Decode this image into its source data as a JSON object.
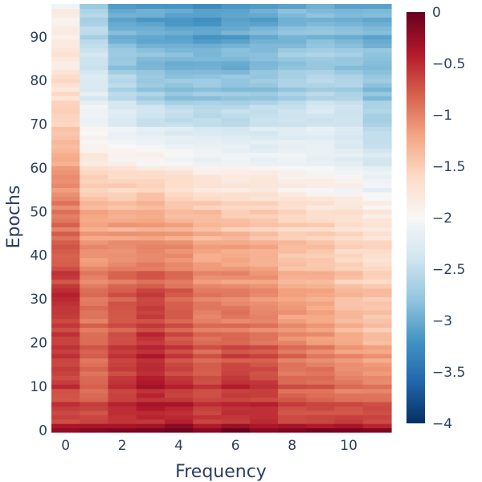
{
  "chart_data": {
    "type": "heatmap",
    "xlabel": "Frequency",
    "ylabel": "Epochs",
    "x": [
      0,
      1,
      2,
      3,
      4,
      5,
      6,
      7,
      8,
      9,
      10,
      11
    ],
    "y_range": [
      0,
      98
    ],
    "x_ticks": [
      "0",
      "2",
      "4",
      "6",
      "8",
      "10"
    ],
    "y_ticks": [
      "0",
      "10",
      "20",
      "30",
      "40",
      "50",
      "60",
      "70",
      "80",
      "90"
    ],
    "colorbar": {
      "min": -4,
      "max": 0,
      "ticks": [
        "0",
        "−0.5",
        "−1",
        "−1.5",
        "−2",
        "−2.5",
        "−3",
        "−3.5",
        "−4"
      ],
      "colorscale": "RdBu",
      "colors": [
        "#053061",
        "#2166ac",
        "#4393c3",
        "#92c5de",
        "#d1e5f0",
        "#f7f7f7",
        "#fddbc7",
        "#f4a582",
        "#d6604d",
        "#b2182b",
        "#67001f"
      ]
    },
    "approx_values_by_epoch": [
      {
        "epoch": 0,
        "values": [
          -0.25,
          -0.2,
          -0.15,
          -0.15,
          -0.1,
          -0.2,
          -0.15,
          -0.2,
          -0.2,
          -0.2,
          -0.2,
          -0.25
        ]
      },
      {
        "epoch": 2,
        "values": [
          -0.6,
          -0.6,
          -0.5,
          -0.5,
          -0.4,
          -0.55,
          -0.5,
          -0.5,
          -0.6,
          -0.6,
          -0.6,
          -0.6
        ]
      },
      {
        "epoch": 10,
        "values": [
          -0.65,
          -0.85,
          -0.6,
          -0.4,
          -0.55,
          -0.7,
          -0.55,
          -0.6,
          -0.8,
          -0.85,
          -0.95,
          -1.0
        ]
      },
      {
        "epoch": 20,
        "values": [
          -0.6,
          -0.85,
          -0.65,
          -0.5,
          -0.7,
          -0.85,
          -0.8,
          -0.85,
          -1.0,
          -1.05,
          -1.2,
          -1.3
        ]
      },
      {
        "epoch": 30,
        "values": [
          -0.55,
          -0.95,
          -0.8,
          -0.7,
          -0.85,
          -1.05,
          -1.05,
          -1.1,
          -1.25,
          -1.3,
          -1.45,
          -1.5
        ]
      },
      {
        "epoch": 40,
        "values": [
          -0.75,
          -1.05,
          -1.0,
          -0.95,
          -1.0,
          -1.15,
          -1.15,
          -1.2,
          -1.35,
          -1.4,
          -1.5,
          -1.6
        ]
      },
      {
        "epoch": 50,
        "values": [
          -0.95,
          -1.3,
          -1.35,
          -1.3,
          -1.4,
          -1.45,
          -1.55,
          -1.55,
          -1.65,
          -1.7,
          -1.75,
          -1.85
        ]
      },
      {
        "epoch": 55,
        "values": [
          -1.1,
          -1.5,
          -1.55,
          -1.5,
          -1.6,
          -1.7,
          -1.75,
          -1.75,
          -1.85,
          -1.9,
          -1.95,
          -2.05
        ]
      },
      {
        "epoch": 60,
        "values": [
          -1.15,
          -1.7,
          -1.8,
          -1.85,
          -1.9,
          -1.95,
          -2.0,
          -2.0,
          -2.05,
          -2.1,
          -2.15,
          -2.3
        ]
      },
      {
        "epoch": 65,
        "values": [
          -1.35,
          -1.95,
          -2.05,
          -2.1,
          -2.15,
          -2.2,
          -2.2,
          -2.25,
          -2.2,
          -2.2,
          -2.3,
          -2.45
        ]
      },
      {
        "epoch": 70,
        "values": [
          -1.5,
          -2.05,
          -2.25,
          -2.35,
          -2.4,
          -2.45,
          -2.45,
          -2.4,
          -2.35,
          -2.3,
          -2.4,
          -2.6
        ]
      },
      {
        "epoch": 75,
        "values": [
          -1.6,
          -2.2,
          -2.45,
          -2.6,
          -2.7,
          -2.7,
          -2.7,
          -2.65,
          -2.55,
          -2.5,
          -2.55,
          -2.75
        ]
      },
      {
        "epoch": 80,
        "values": [
          -1.7,
          -2.35,
          -2.65,
          -2.8,
          -2.85,
          -2.85,
          -2.85,
          -2.8,
          -2.7,
          -2.65,
          -2.7,
          -2.85
        ]
      },
      {
        "epoch": 85,
        "values": [
          -1.8,
          -2.45,
          -2.8,
          -2.9,
          -2.95,
          -2.95,
          -2.95,
          -2.9,
          -2.8,
          -2.75,
          -2.8,
          -2.9
        ]
      },
      {
        "epoch": 90,
        "values": [
          -1.85,
          -2.55,
          -2.95,
          -3.0,
          -3.05,
          -3.1,
          -3.05,
          -3.0,
          -2.9,
          -2.85,
          -2.9,
          -2.95
        ]
      },
      {
        "epoch": 97,
        "values": [
          -1.95,
          -2.7,
          -3.05,
          -3.1,
          -3.1,
          -3.15,
          -3.1,
          -3.05,
          -2.95,
          -2.9,
          -2.95,
          -2.95
        ]
      }
    ]
  }
}
